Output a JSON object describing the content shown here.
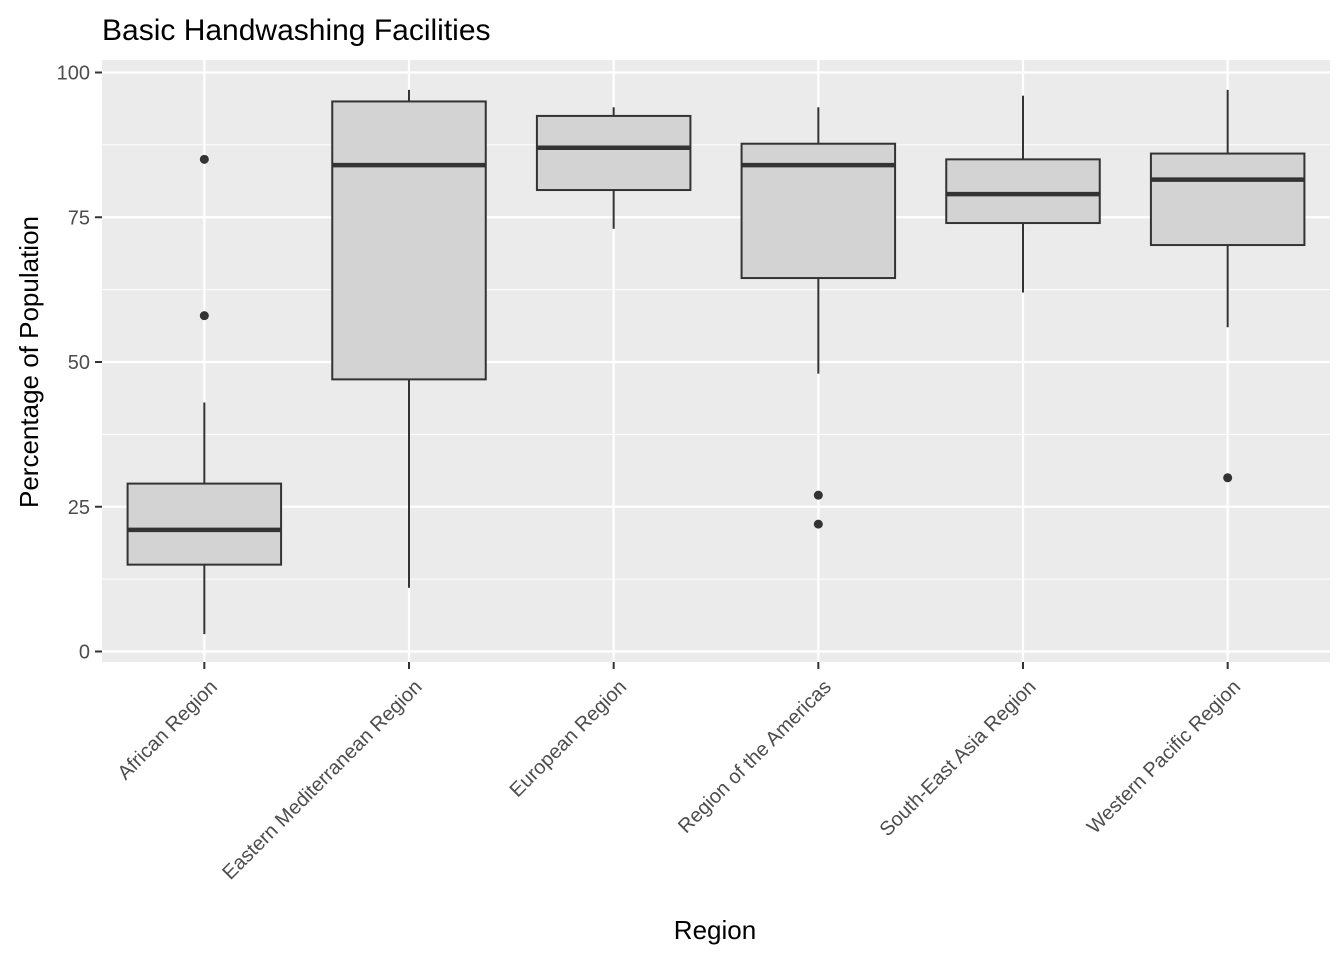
{
  "chart_data": {
    "type": "boxplot",
    "title": "Basic Handwashing Facilities",
    "xlabel": "Region",
    "ylabel": "Percentage of Population",
    "ylim": [
      -2,
      101
    ],
    "yticks": [
      0,
      25,
      50,
      75,
      100
    ],
    "grid": true,
    "legend": "none",
    "colors": {
      "panel": "#ebebeb",
      "grid": "#ffffff",
      "box_fill": "#d3d3d3",
      "box_stroke": "#333333",
      "tick_text": "#4d4d4d"
    },
    "categories": [
      "African Region",
      "Eastern Mediterranean Region",
      "European Region",
      "Region of the Americas",
      "South-East Asia Region",
      "Western Pacific Region"
    ],
    "boxes": [
      {
        "whisker_low": 3,
        "q1": 15,
        "median": 21,
        "q3": 29,
        "whisker_high": 43,
        "outliers": [
          58,
          85
        ]
      },
      {
        "whisker_low": 11,
        "q1": 47,
        "median": 84,
        "q3": 95,
        "whisker_high": 97,
        "outliers": []
      },
      {
        "whisker_low": 73,
        "q1": 79.7,
        "median": 87,
        "q3": 92.5,
        "whisker_high": 94,
        "outliers": []
      },
      {
        "whisker_low": 48,
        "q1": 64.5,
        "median": 84,
        "q3": 87.7,
        "whisker_high": 94,
        "outliers": [
          22,
          27
        ]
      },
      {
        "whisker_low": 62,
        "q1": 74,
        "median": 79,
        "q3": 85,
        "whisker_high": 96,
        "outliers": []
      },
      {
        "whisker_low": 56,
        "q1": 70.2,
        "median": 81.5,
        "q3": 86,
        "whisker_high": 97,
        "outliers": [
          30
        ]
      }
    ]
  }
}
